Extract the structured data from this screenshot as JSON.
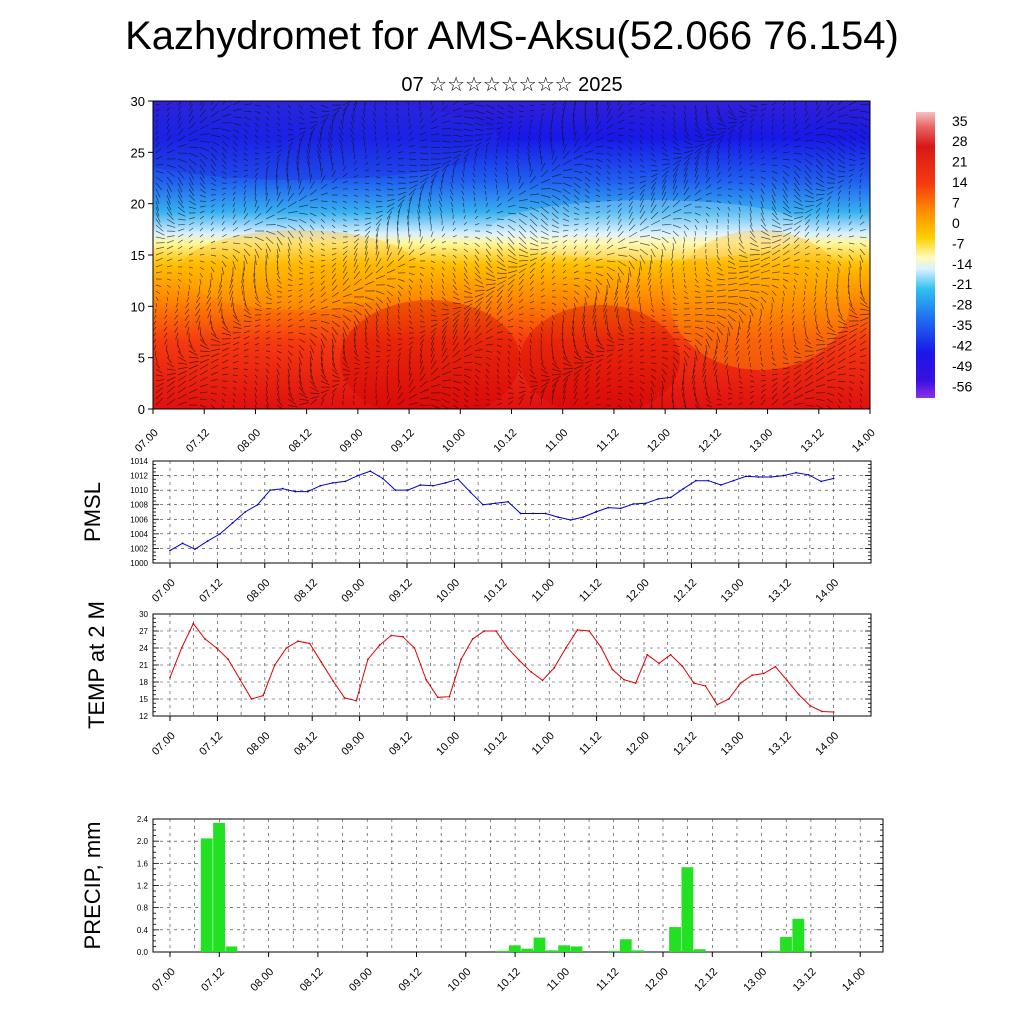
{
  "header": {
    "title": "Kazhydromet for AMS-Aksu(52.066 76.154)",
    "subtitle": "07 ☆☆☆☆☆☆☆☆ 2025"
  },
  "chart_data": [
    {
      "type": "heatmap",
      "ylim": [
        0,
        30
      ],
      "yticks": [
        "0",
        "5",
        "10",
        "15",
        "20",
        "25",
        "30"
      ],
      "xticks": [
        "07.00",
        "07.12",
        "08.00",
        "08.12",
        "09.00",
        "09.12",
        "10.00",
        "10.12",
        "11.00",
        "11.12",
        "12.00",
        "12.12",
        "13.00",
        "13.12",
        "14.00"
      ],
      "colorbar": {
        "labels": [
          "35",
          "28",
          "21",
          "14",
          "7",
          "0",
          "-7",
          "-14",
          "-21",
          "-28",
          "-35",
          "-42",
          "-49",
          "-56"
        ],
        "range": [
          -60,
          38
        ]
      },
      "colors": {
        "hot": "#d81a1a",
        "warm": "#ffb800",
        "neutral": "#fff8a0",
        "cool": "#3fb0f0",
        "cold": "#1010e0",
        "deep": "#7a20e0"
      },
      "overlay": "wind vectors"
    },
    {
      "type": "line",
      "ylabel": "PMSL",
      "ylim": [
        1000,
        1014
      ],
      "yticks": [
        "1000",
        "1002",
        "1004",
        "1006",
        "1008",
        "1010",
        "1012",
        "1014"
      ],
      "xticks": [
        "07.00",
        "07.12",
        "08.00",
        "08.12",
        "09.00",
        "09.12",
        "10.00",
        "10.12",
        "11.00",
        "11.12",
        "12.00",
        "12.12",
        "13.00",
        "13.12",
        "14.00"
      ],
      "series": [
        {
          "color": "#0000cc",
          "values": [
            1001.7,
            1002.7,
            1001.9,
            1003.0,
            1004.0,
            1005.5,
            1007.0,
            1008.0,
            1010.0,
            1010.2,
            1009.8,
            1009.8,
            1010.6,
            1011.0,
            1011.2,
            1012.0,
            1012.6,
            1011.6,
            1010.0,
            1010.0,
            1010.7,
            1010.6,
            1011.0,
            1011.5,
            1009.7,
            1008.0,
            1008.2,
            1008.4,
            1006.8,
            1006.8,
            1006.8,
            1006.3,
            1005.9,
            1006.3,
            1007.0,
            1007.6,
            1007.5,
            1008.1,
            1008.2,
            1008.8,
            1009.0,
            1010.2,
            1011.3,
            1011.3,
            1010.7,
            1011.3,
            1011.9,
            1011.8,
            1011.8,
            1012.0,
            1012.4,
            1012.1,
            1011.2,
            1011.6
          ]
        }
      ]
    },
    {
      "type": "line",
      "ylabel": "TEMP at 2 M",
      "ylim": [
        12,
        30
      ],
      "yticks": [
        "12",
        "15",
        "18",
        "21",
        "24",
        "27",
        "30"
      ],
      "xticks": [
        "07.00",
        "07.12",
        "08.00",
        "08.12",
        "09.00",
        "09.12",
        "10.00",
        "10.12",
        "11.00",
        "11.12",
        "12.00",
        "12.12",
        "13.00",
        "13.12",
        "14.00"
      ],
      "series": [
        {
          "color": "#dd0000",
          "values": [
            18.8,
            24.0,
            28.3,
            25.6,
            24.0,
            22.0,
            18.5,
            15.0,
            15.6,
            21.0,
            24.0,
            25.2,
            24.8,
            21.5,
            18.2,
            15.2,
            14.7,
            22.0,
            24.5,
            26.2,
            26.0,
            24.0,
            18.4,
            15.3,
            15.4,
            22.0,
            25.6,
            27.0,
            27.0,
            24.0,
            21.8,
            19.8,
            18.3,
            20.5,
            24.0,
            27.2,
            27.0,
            24.2,
            20.2,
            18.4,
            17.8,
            22.8,
            21.3,
            22.8,
            20.8,
            17.8,
            17.3,
            14.0,
            15.0,
            17.8,
            19.2,
            19.5,
            20.7,
            18.3,
            15.8,
            13.8,
            12.8,
            12.7
          ]
        }
      ]
    },
    {
      "type": "bar",
      "ylabel": "PRECIP, mm",
      "ylim": [
        0,
        2.4
      ],
      "yticks": [
        "0.0",
        "0.4",
        "0.8",
        "1.2",
        "1.6",
        "2.0",
        "2.4"
      ],
      "xticks": [
        "07.00",
        "07.12",
        "08.00",
        "08.12",
        "09.00",
        "09.12",
        "10.00",
        "10.12",
        "11.00",
        "11.12",
        "12.00",
        "12.12",
        "13.00",
        "13.12",
        "14.00"
      ],
      "series": [
        {
          "color": "#22e022",
          "values": [
            0,
            0,
            0,
            2.05,
            2.33,
            0.1,
            0,
            0,
            0,
            0,
            0,
            0,
            0,
            0,
            0,
            0,
            0,
            0,
            0,
            0,
            0,
            0,
            0,
            0,
            0,
            0,
            0,
            0.02,
            0.12,
            0.06,
            0.26,
            0.03,
            0.12,
            0.1,
            0,
            0,
            0.02,
            0.23,
            0.03,
            0,
            0,
            0.45,
            1.53,
            0.05,
            0,
            0,
            0,
            0,
            0,
            0.02,
            0.27,
            0.6,
            0.02,
            0,
            0,
            0,
            0
          ]
        }
      ]
    }
  ]
}
